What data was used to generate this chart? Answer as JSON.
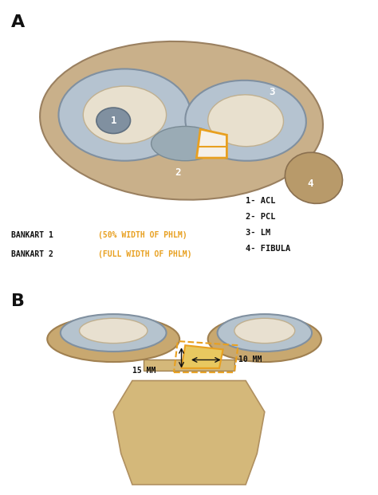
{
  "figure_label_A": "A",
  "figure_label_B": "B",
  "legend_items": [
    {
      "number": "1-",
      "text": " ACL"
    },
    {
      "number": "2-",
      "text": " PCL"
    },
    {
      "number": "3-",
      "text": " LM"
    },
    {
      "number": "4-",
      "text": " FIBULA"
    }
  ],
  "bankart_lines": [
    {
      "prefix": "BANKART 1 ",
      "highlight": "(50% WIDTH OF PHLM)",
      "color_prefix": "#000000",
      "color_highlight": "#e8a020"
    },
    {
      "prefix": "BANKART 2 ",
      "highlight": "(FULL WIDTH OF PHLM)",
      "color_prefix": "#000000",
      "color_highlight": "#e8a020"
    }
  ],
  "measure_10mm": "10 MM",
  "measure_15mm": "15 MM",
  "background_color": "#ffffff",
  "text_color_black": "#111111",
  "text_color_orange": "#e8a020",
  "fig_width": 4.74,
  "fig_height": 6.21,
  "dpi": 100
}
